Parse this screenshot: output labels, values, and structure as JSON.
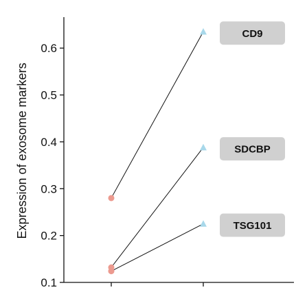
{
  "chart_data": {
    "type": "scatter",
    "ylabel": "Expression of exosome markers",
    "xlabel": "",
    "ylim": [
      0.1,
      0.65
    ],
    "yticks": [
      0.1,
      0.2,
      0.3,
      0.4,
      0.5,
      0.6
    ],
    "x": [
      0,
      1
    ],
    "start_color": "#ec9a8f",
    "end_color": "#a8d8ea",
    "line_color": "#111111",
    "badge_color": "#d0d0d0",
    "series": [
      {
        "name": "CD9",
        "values": [
          0.28,
          0.635
        ]
      },
      {
        "name": "SDCBP",
        "values": [
          0.132,
          0.388
        ]
      },
      {
        "name": "TSG101",
        "values": [
          0.124,
          0.225
        ]
      }
    ]
  }
}
